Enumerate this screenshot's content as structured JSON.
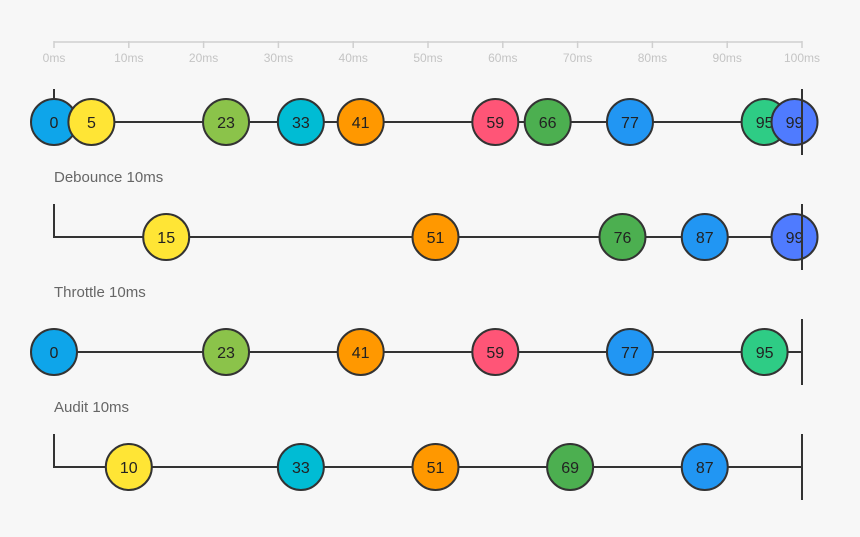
{
  "axis": {
    "ticks": [
      {
        "value": 0,
        "label": "0ms"
      },
      {
        "value": 10,
        "label": "10ms"
      },
      {
        "value": 20,
        "label": "20ms"
      },
      {
        "value": 30,
        "label": "30ms"
      },
      {
        "value": 40,
        "label": "40ms"
      },
      {
        "value": 50,
        "label": "50ms"
      },
      {
        "value": 60,
        "label": "60ms"
      },
      {
        "value": 70,
        "label": "70ms"
      },
      {
        "value": 80,
        "label": "80ms"
      },
      {
        "value": 90,
        "label": "90ms"
      },
      {
        "value": 100,
        "label": "100ms"
      }
    ],
    "range": [
      0,
      100
    ]
  },
  "colors": {
    "0": "#0ea5ea",
    "5": "#ffe535",
    "10": "#ffe535",
    "15": "#ffe535",
    "23": "#8bc34a",
    "33": "#00bcd4",
    "41": "#ff9800",
    "51": "#ff9800",
    "59": "#ff5577",
    "66": "#4caf50",
    "69": "#4caf50",
    "76": "#4caf50",
    "77": "#2196f3",
    "87": "#2196f3",
    "95": "#2ecc85",
    "99": "#4f7bff"
  },
  "timelines": [
    {
      "key": "source",
      "label": "",
      "start_marker": true,
      "end_marker": true,
      "events": [
        {
          "time": 0,
          "label": "0"
        },
        {
          "time": 5,
          "label": "5"
        },
        {
          "time": 23,
          "label": "23"
        },
        {
          "time": 33,
          "label": "33"
        },
        {
          "time": 41,
          "label": "41"
        },
        {
          "time": 59,
          "label": "59"
        },
        {
          "time": 66,
          "label": "66"
        },
        {
          "time": 77,
          "label": "77"
        },
        {
          "time": 95,
          "label": "95"
        },
        {
          "time": 99,
          "label": "99"
        }
      ]
    },
    {
      "key": "debounce",
      "label": "Debounce 10ms",
      "start_marker": true,
      "end_marker": true,
      "events": [
        {
          "time": 15,
          "label": "15"
        },
        {
          "time": 51,
          "label": "51"
        },
        {
          "time": 76,
          "label": "76"
        },
        {
          "time": 87,
          "label": "87"
        },
        {
          "time": 99,
          "label": "99"
        }
      ]
    },
    {
      "key": "throttle",
      "label": "Throttle 10ms",
      "start_marker": false,
      "end_marker": true,
      "events": [
        {
          "time": 0,
          "label": "0"
        },
        {
          "time": 23,
          "label": "23"
        },
        {
          "time": 41,
          "label": "41"
        },
        {
          "time": 59,
          "label": "59"
        },
        {
          "time": 77,
          "label": "77"
        },
        {
          "time": 95,
          "label": "95"
        }
      ]
    },
    {
      "key": "audit",
      "label": "Audit 10ms",
      "start_marker": true,
      "end_marker": true,
      "events": [
        {
          "time": 10,
          "label": "10"
        },
        {
          "time": 33,
          "label": "33"
        },
        {
          "time": 51,
          "label": "51"
        },
        {
          "time": 69,
          "label": "69"
        },
        {
          "time": 87,
          "label": "87"
        }
      ]
    }
  ]
}
